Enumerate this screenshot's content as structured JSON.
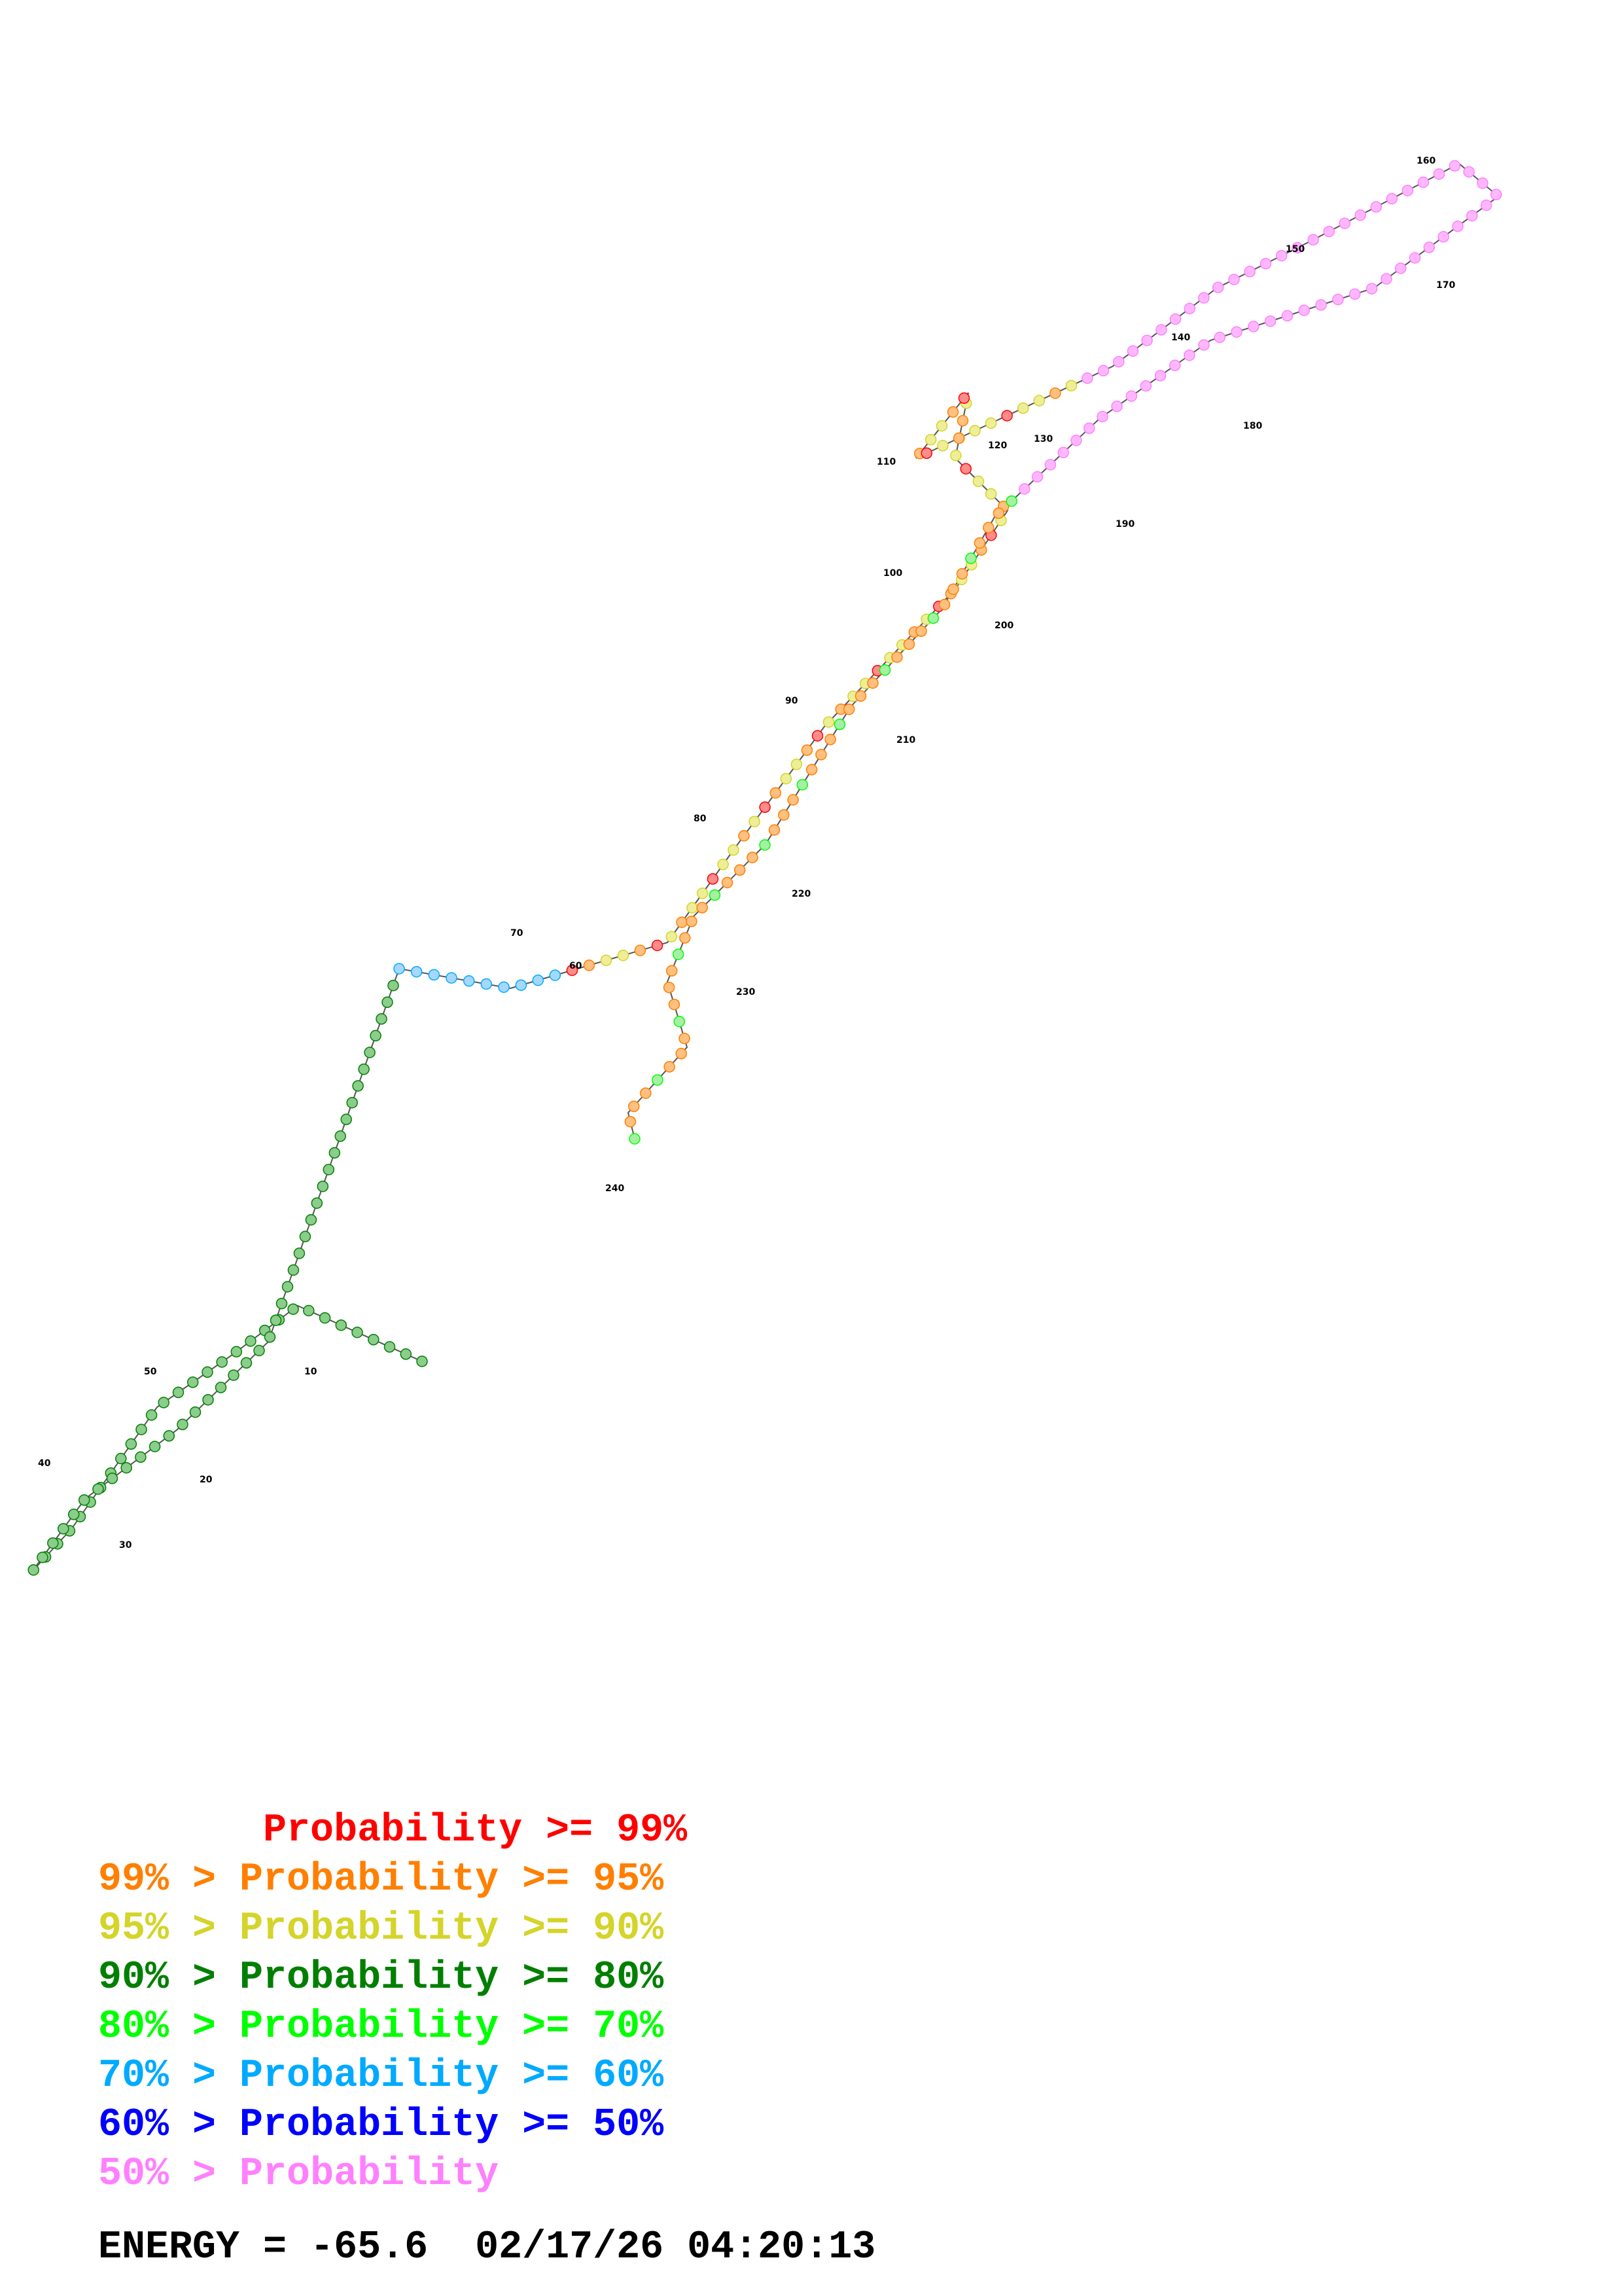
{
  "structure": {
    "position_labels": [
      "10",
      "20",
      "30",
      "40",
      "50",
      "60",
      "70",
      "80",
      "90",
      "100",
      "110",
      "120",
      "130",
      "140",
      "150",
      "160",
      "170",
      "180",
      "190",
      "200",
      "210",
      "220",
      "230",
      "240"
    ]
  },
  "legend": {
    "items": [
      {
        "prefix": "       ",
        "text": "Probability >= 99%",
        "color": "#ff0000"
      },
      {
        "prefix": "99% > ",
        "text": "Probability >= 95%",
        "color": "#ff7f00"
      },
      {
        "prefix": "95% > ",
        "text": "Probability >= 90%",
        "color": "#d4d42a"
      },
      {
        "prefix": "90% > ",
        "text": "Probability >= 80%",
        "color": "#007f00"
      },
      {
        "prefix": "80% > ",
        "text": "Probability >= 70%",
        "color": "#00ff00"
      },
      {
        "prefix": "70% > ",
        "text": "Probability >= 60%",
        "color": "#00aaff"
      },
      {
        "prefix": "60% > ",
        "text": "Probability >= 50%",
        "color": "#0000ff"
      },
      {
        "prefix": "50% > ",
        "text": "Probability",
        "color": "#ff80ff"
      }
    ]
  },
  "footer": {
    "energy_label": "ENERGY = ",
    "energy_value": "-65.6",
    "datetime": "02/17/26 04:20:13"
  }
}
